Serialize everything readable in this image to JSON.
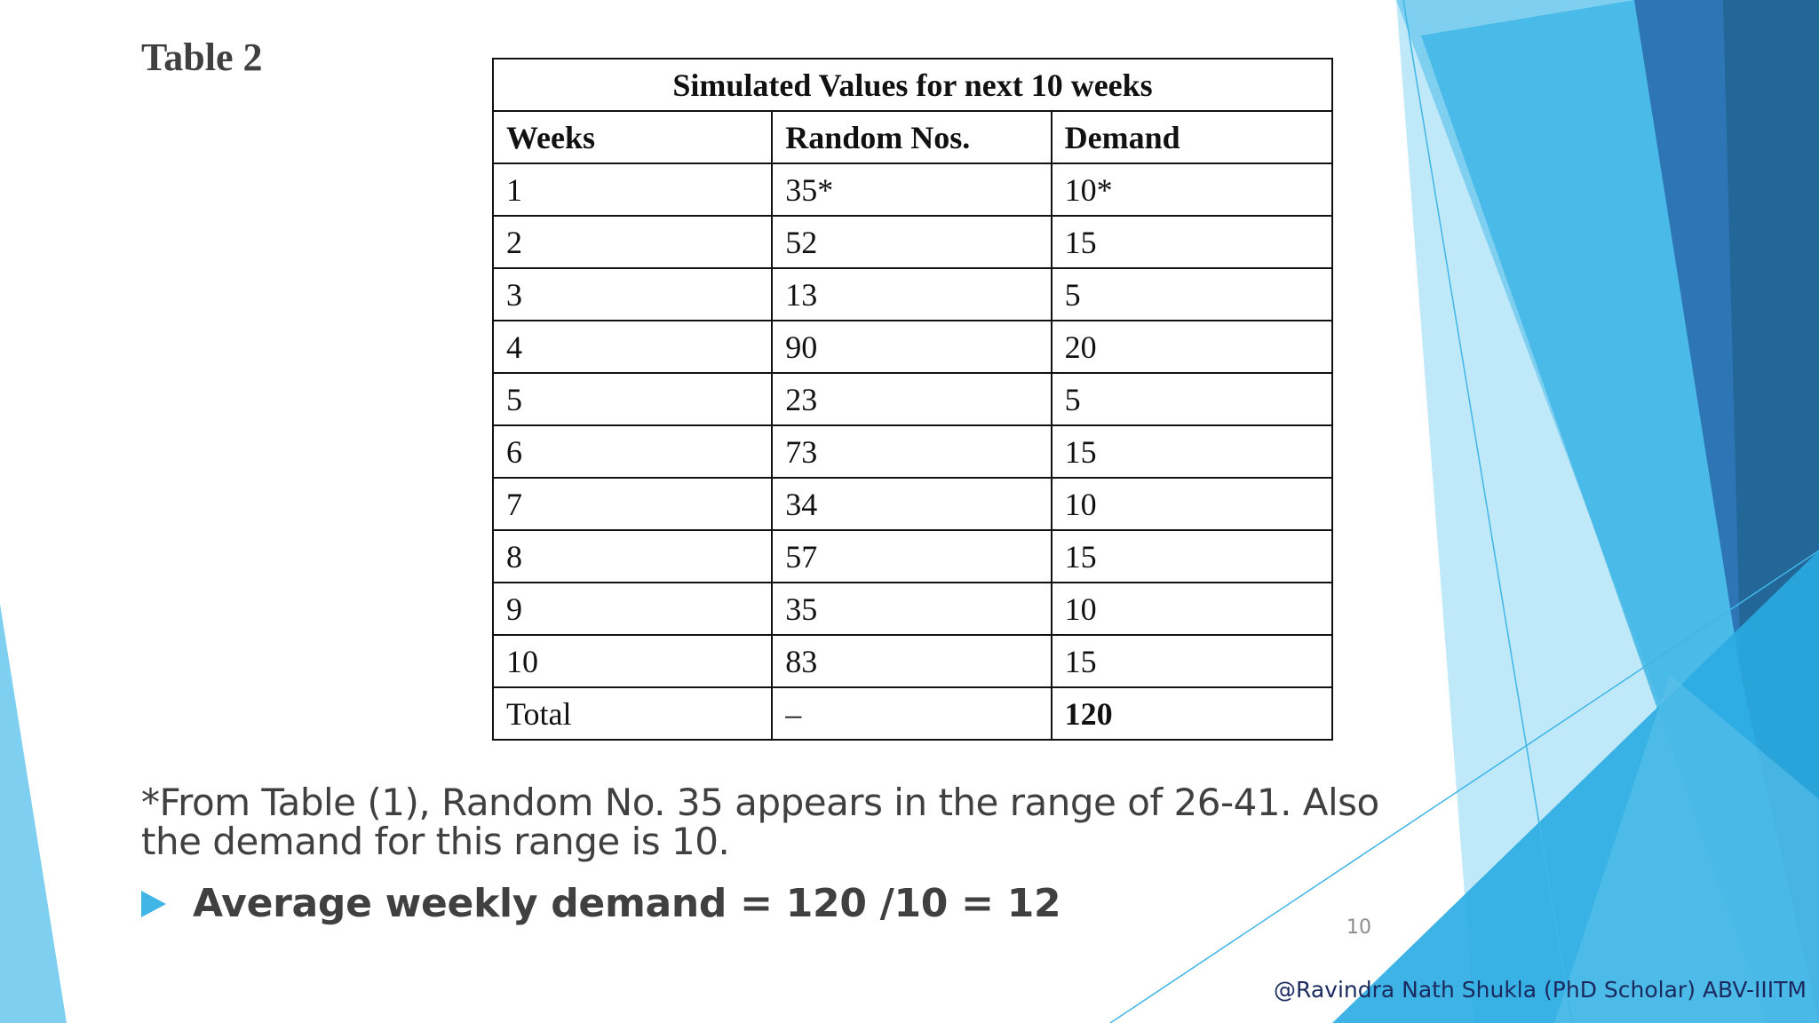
{
  "slide": {
    "table_label": "Table 2",
    "page_number": "10",
    "credit": "@Ravindra Nath  Shukla (PhD Scholar) ABV-IIITM",
    "accent_colors": [
      "#2e75b6",
      "#41b6e6",
      "#7fd0f0",
      "#bfe8f8",
      "#1f5f8b"
    ]
  },
  "table": {
    "caption": "Simulated Values for next 10 weeks",
    "headers": [
      "Weeks",
      "Random Nos.",
      "Demand"
    ],
    "rows": [
      [
        "1",
        "35*",
        "10*"
      ],
      [
        "2",
        "52",
        "15"
      ],
      [
        "3",
        "13",
        "5"
      ],
      [
        "4",
        "90",
        "20"
      ],
      [
        "5",
        "23",
        "5"
      ],
      [
        "6",
        "73",
        "15"
      ],
      [
        "7",
        "34",
        "10"
      ],
      [
        "8",
        "57",
        "15"
      ],
      [
        "9",
        "35",
        "10"
      ],
      [
        "10",
        "83",
        "15"
      ],
      [
        "Total",
        "–",
        "120"
      ]
    ]
  },
  "footnote": "*From Table (1), Random No. 35 appears in the range of 26-41. Also the demand for this range is 10.",
  "bullet": {
    "icon": "triangle-right-icon",
    "text": "Average weekly demand = 120 /10 = 12"
  }
}
